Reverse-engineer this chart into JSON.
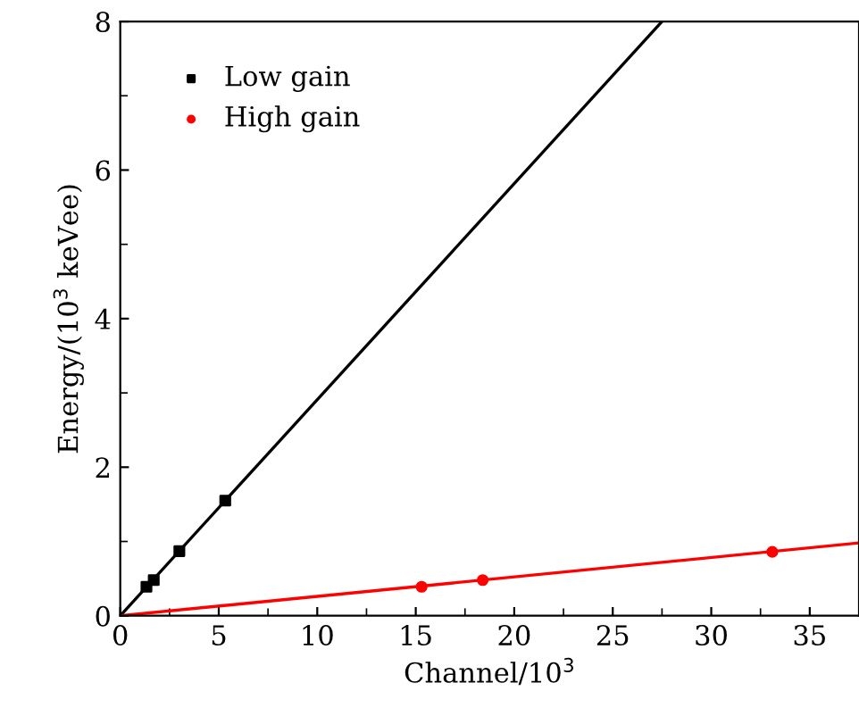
{
  "chart_data": {
    "type": "scatter",
    "xlabel": "Channel/10$^{3}$",
    "ylabel": "Energy/(10$^{3}$ keVee)",
    "xlim": [
      0,
      37.5
    ],
    "xticks": [
      0,
      5,
      10,
      15,
      20,
      25,
      30,
      35
    ],
    "ylim": [
      0,
      8
    ],
    "yticks": [
      0,
      2,
      4,
      6,
      8
    ],
    "grid": false,
    "legend": "top left",
    "series": [
      {
        "name": "Low gain",
        "color": "#000000",
        "marker": "square",
        "x": [
          1.33,
          1.7,
          3.0,
          5.33
        ],
        "values": [
          0.39,
          0.48,
          0.87,
          1.55
        ]
      },
      {
        "name": "High gain",
        "color": "#ff0000",
        "marker": "circle",
        "x": [
          15.3,
          18.4,
          33.1
        ],
        "values": [
          0.39,
          0.48,
          0.86
        ]
      },
      {
        "type": "line",
        "color": "#000000",
        "marker": "none",
        "x": [
          0,
          27.5
        ],
        "values": [
          0,
          8
        ]
      },
      {
        "type": "line",
        "color": "#ff0000",
        "marker": "none",
        "x": [
          0,
          37.5
        ],
        "values": [
          0,
          0.98
        ]
      }
    ]
  }
}
